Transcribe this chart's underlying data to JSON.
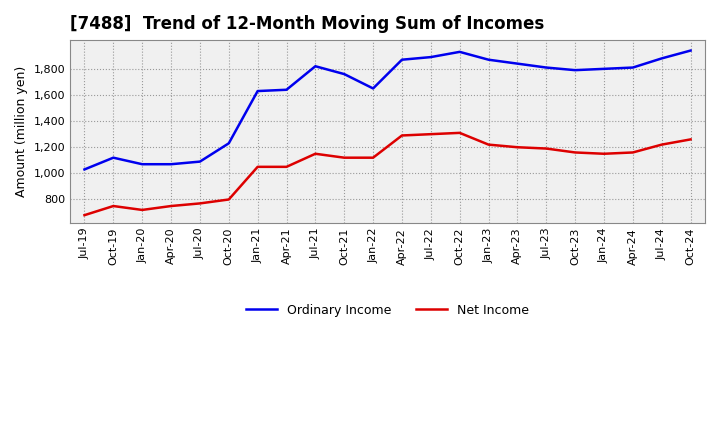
{
  "title": "[7488]  Trend of 12-Month Moving Sum of Incomes",
  "ylabel": "Amount (million yen)",
  "background_color": "#ffffff",
  "grid_color": "#999999",
  "plot_bg_color": "#f0f0f0",
  "ordinary_income_color": "#0000ee",
  "net_income_color": "#dd0000",
  "ordinary_income_label": "Ordinary Income",
  "net_income_label": "Net Income",
  "x_labels": [
    "Jul-19",
    "Oct-19",
    "Jan-20",
    "Apr-20",
    "Jul-20",
    "Oct-20",
    "Jan-21",
    "Apr-21",
    "Jul-21",
    "Oct-21",
    "Jan-22",
    "Apr-22",
    "Jul-22",
    "Oct-22",
    "Jan-23",
    "Apr-23",
    "Jul-23",
    "Oct-23",
    "Jan-24",
    "Apr-24",
    "Jul-24",
    "Oct-24"
  ],
  "ordinary_income": [
    1030,
    1120,
    1070,
    1070,
    1090,
    1230,
    1630,
    1640,
    1820,
    1760,
    1650,
    1870,
    1890,
    1930,
    1870,
    1840,
    1810,
    1790,
    1800,
    1810,
    1880,
    1940
  ],
  "net_income": [
    680,
    750,
    720,
    750,
    770,
    800,
    1050,
    1050,
    1150,
    1120,
    1120,
    1290,
    1300,
    1310,
    1220,
    1200,
    1190,
    1160,
    1150,
    1160,
    1220,
    1260
  ],
  "ylim": [
    620,
    2020
  ],
  "yticks": [
    800,
    1000,
    1200,
    1400,
    1600,
    1800
  ],
  "line_width": 1.8,
  "title_fontsize": 12,
  "axis_fontsize": 9,
  "tick_fontsize": 8,
  "legend_fontsize": 9
}
